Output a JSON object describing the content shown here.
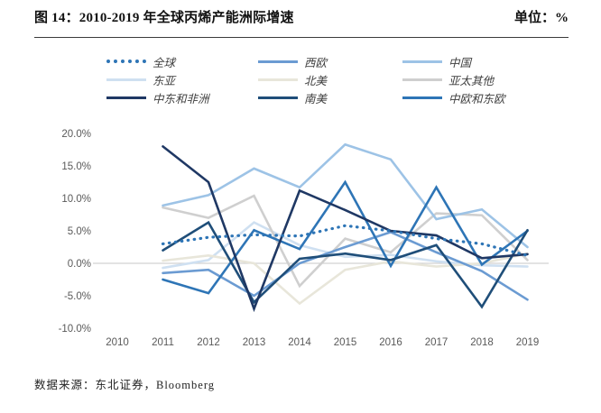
{
  "header": {
    "title": "图 14：2010-2019 年全球丙烯产能洲际增速",
    "unit": "单位：%"
  },
  "footer": {
    "source": "数据来源：东北证券，Bloomberg"
  },
  "colors": {
    "axis_text": "#595959",
    "zero_line": "#d2d2d2",
    "rule": "#3b3b3b"
  },
  "chart_data": {
    "type": "line",
    "title": "2010-2019 年全球丙烯产能洲际增速",
    "ylabel": "%",
    "xlabel": "",
    "grid": "zero-line-only",
    "legend_position": "top",
    "x_categories": [
      "2010",
      "2011",
      "2012",
      "2013",
      "2014",
      "2015",
      "2016",
      "2017",
      "2018",
      "2019"
    ],
    "data_years": [
      "2011",
      "2012",
      "2013",
      "2014",
      "2015",
      "2016",
      "2017",
      "2018",
      "2019"
    ],
    "y_axis": {
      "min": -10,
      "max": 20,
      "tick_step": 5,
      "tick_labels": [
        "20.0%",
        "15.0%",
        "10.0%",
        "5.0%",
        "0.0%",
        "-5.0%",
        "-10.0%"
      ]
    },
    "series": [
      {
        "name": "全球",
        "color": "#2e75b6",
        "style": "dotted",
        "values": [
          3.0,
          4.0,
          4.4,
          4.2,
          5.8,
          5.0,
          3.8,
          3.0,
          1.2
        ]
      },
      {
        "name": "西欧",
        "color": "#6b9bd2",
        "style": "solid",
        "values": [
          -1.5,
          -1.0,
          -5.0,
          0.0,
          2.5,
          4.8,
          1.7,
          -1.2,
          -5.6
        ]
      },
      {
        "name": "中国",
        "color": "#9dc3e6",
        "style": "solid",
        "values": [
          8.9,
          10.5,
          14.6,
          11.7,
          18.3,
          16.0,
          6.8,
          8.3,
          2.5
        ]
      },
      {
        "name": "东亚",
        "color": "#cfe0f1",
        "style": "solid",
        "values": [
          -0.7,
          0.5,
          6.3,
          2.8,
          1.0,
          1.3,
          0.3,
          -0.3,
          -0.5
        ]
      },
      {
        "name": "北美",
        "color": "#e8e6da",
        "style": "solid",
        "values": [
          0.4,
          1.2,
          0.0,
          -6.2,
          -1.0,
          0.3,
          -0.5,
          0.0,
          1.5
        ]
      },
      {
        "name": "亚太其他",
        "color": "#cfcfcf",
        "style": "solid",
        "values": [
          8.6,
          7.0,
          10.4,
          -3.5,
          3.8,
          1.7,
          7.7,
          7.4,
          0.5
        ]
      },
      {
        "name": "中东和非洲",
        "color": "#1f3864",
        "style": "solid",
        "values": [
          18.0,
          12.5,
          -7.0,
          11.2,
          8.2,
          5.0,
          4.3,
          0.8,
          1.4
        ]
      },
      {
        "name": "南美",
        "color": "#1f4e79",
        "style": "solid",
        "values": [
          2.0,
          6.3,
          -6.0,
          0.7,
          1.5,
          0.5,
          2.8,
          -6.7,
          5.1
        ]
      },
      {
        "name": "中欧和东欧",
        "color": "#2e75b6",
        "style": "solid",
        "values": [
          -2.5,
          -4.6,
          5.1,
          2.2,
          12.5,
          -0.4,
          11.7,
          -0.2,
          5.0
        ]
      }
    ]
  }
}
